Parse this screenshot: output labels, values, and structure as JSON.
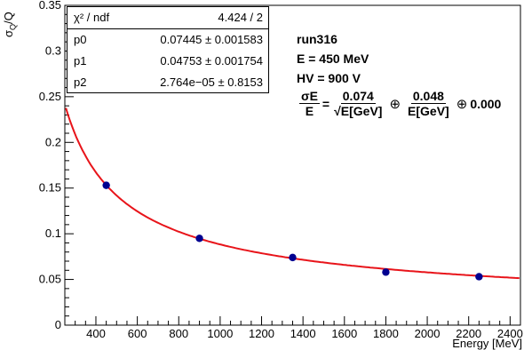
{
  "axes": {
    "ylabel_main": "σ",
    "ylabel_sub": "Q",
    "ylabel_tail": "/Q",
    "xlabel": "Energy [MeV]"
  },
  "stats_box": {
    "header_label": "χ² / ndf",
    "header_value": "4.424 / 2",
    "rows": [
      {
        "name": "p0",
        "value": "0.07445 ± 0.001583"
      },
      {
        "name": "p1",
        "value": "0.04753 ± 0.001754"
      },
      {
        "name": "p2",
        "value": "2.764e−05 ± 0.8153"
      }
    ]
  },
  "info": {
    "run": "run316",
    "energy": "E = 450 MeV",
    "hv": "HV = 900 V"
  },
  "formula": {
    "lhs_num": "σE",
    "lhs_den": "E",
    "eq": "=",
    "t1_num": "0.074",
    "t1_den": "√E[GeV]",
    "plus1": "⊕",
    "t2_num": "0.048",
    "t2_den": "E[GeV]",
    "plus2": "⊕",
    "t3": "0.000"
  },
  "colors": {
    "fit_line": "#e8141a",
    "marker": "#000090"
  },
  "chart_data": {
    "type": "scatter",
    "x": [
      450,
      900,
      1350,
      1800,
      2250
    ],
    "y": [
      0.153,
      0.095,
      0.074,
      0.058,
      0.053
    ],
    "xlim": [
      250,
      2450
    ],
    "ylim": [
      0,
      0.35
    ],
    "xticks": [
      400,
      600,
      800,
      1000,
      1200,
      1400,
      1600,
      1800,
      2000,
      2200,
      2400
    ],
    "yticks": [
      0,
      0.05,
      0.1,
      0.15,
      0.2,
      0.25,
      0.3,
      0.35
    ],
    "ytick_labels": [
      "0",
      "0.05",
      "0.1",
      "0.15",
      "0.2",
      "0.25",
      "0.3",
      "0.35"
    ],
    "fit": {
      "p0": 0.07445,
      "p1": 0.04753,
      "p2": 2.764e-05
    }
  }
}
